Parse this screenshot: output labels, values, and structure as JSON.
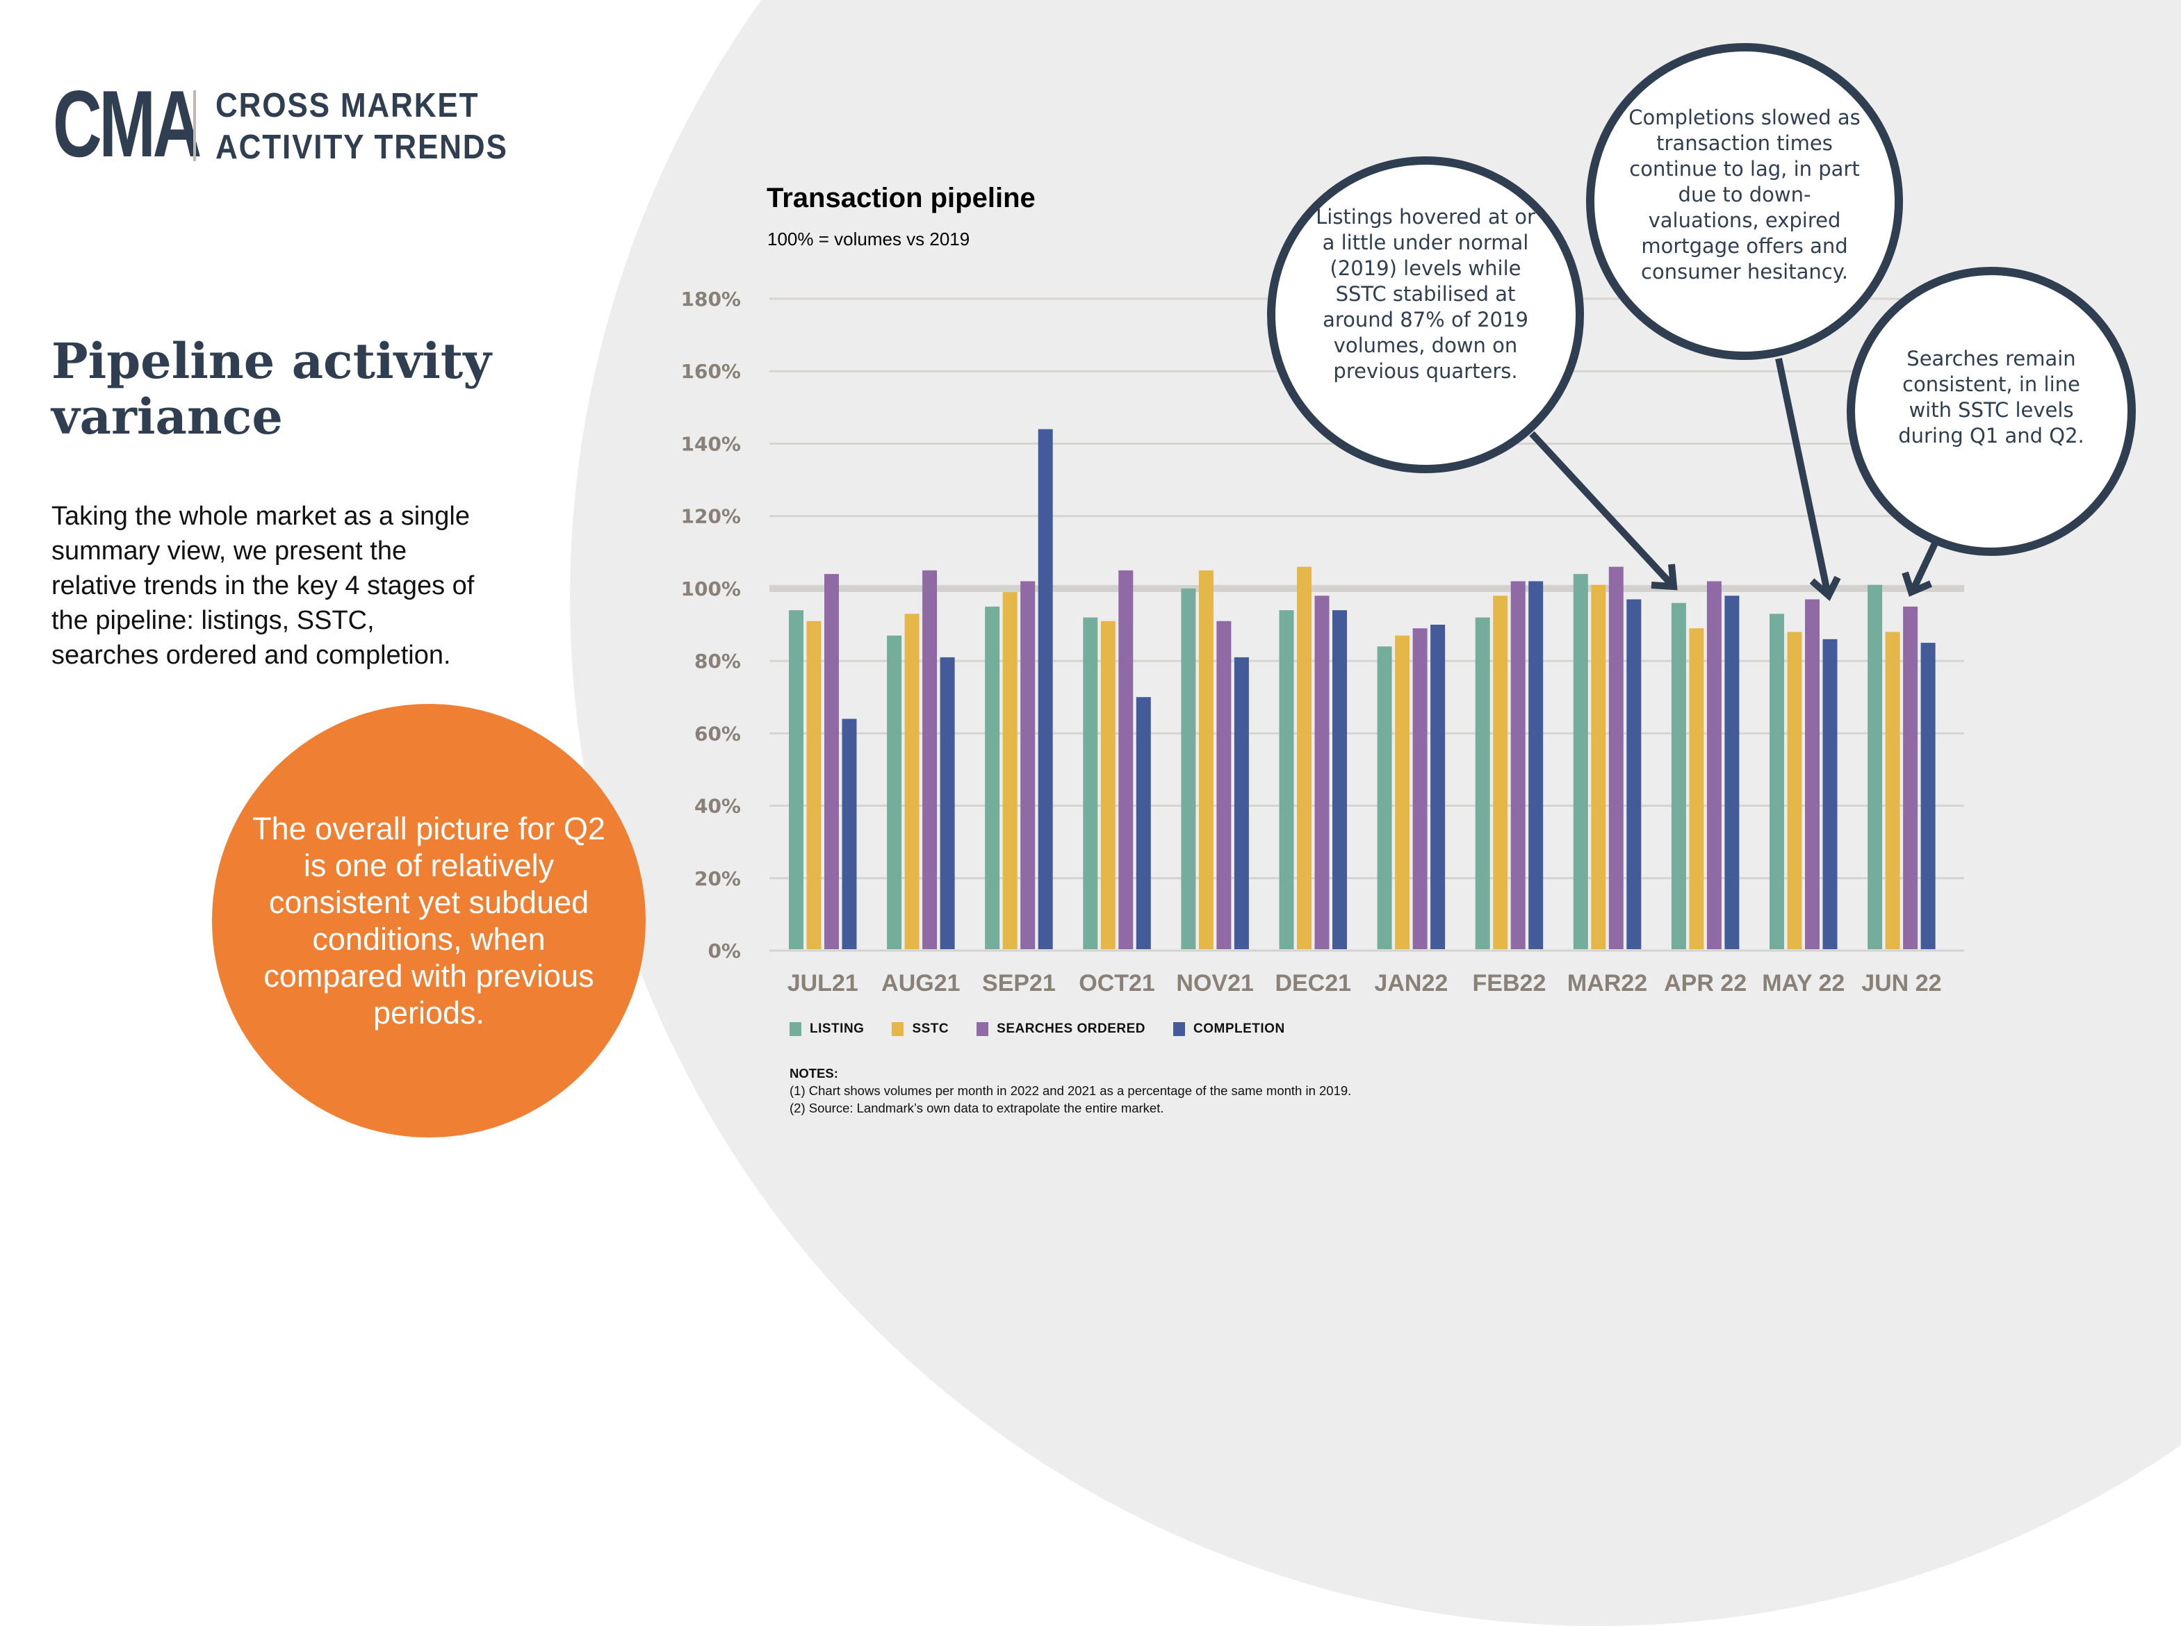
{
  "header": {
    "logo_mark": "CMA",
    "logo_line1": "CROSS MARKET",
    "logo_line2": "ACTIVITY TRENDS"
  },
  "page": {
    "title": "Pipeline activity variance",
    "intro": "Taking the whole market as a single summary view, we present the relative trends in the key 4 stages of the pipeline: listings, SSTC, searches ordered and completion.",
    "highlight": "The overall picture for Q2 is one of relatively consistent yet subdued conditions, when compared with previous periods."
  },
  "colors": {
    "brand_navy": "#2f3e50",
    "highlight_orange": "#ef8033",
    "listing": "#74ad9b",
    "sstc": "#e5b749",
    "searches": "#8f6aa5",
    "completion": "#435c99",
    "axis_text": "#898077"
  },
  "callouts": [
    "Listings hovered at or a little under normal (2019) levels while SSTC stabilised at around 87% of 2019 volumes, down on previous quarters.",
    "Completions slowed as transaction times continue to lag, in part due to down-valuations, expired mortgage offers and consumer hesitancy.",
    "Searches remain consistent, in line with SSTC levels during Q1 and Q2."
  ],
  "notes": {
    "title": "NOTES:",
    "lines": [
      "(1) Chart shows volumes per month in 2022 and 2021 as a percentage of the same month in 2019.",
      "(2) Source: Landmark’s own data to extrapolate the entire market."
    ]
  },
  "chart_data": {
    "type": "bar",
    "title": "Transaction pipeline",
    "subtitle": "100% = volumes vs 2019",
    "xlabel": "",
    "ylabel": "",
    "ylim": [
      0,
      180
    ],
    "yticks": [
      0,
      20,
      40,
      60,
      80,
      100,
      120,
      140,
      160,
      180
    ],
    "ytick_labels": [
      "0%",
      "20%",
      "40%",
      "60%",
      "80%",
      "100%",
      "120%",
      "140%",
      "160%",
      "180%"
    ],
    "reference_line": 100,
    "grid": true,
    "legend_position": "bottom-left",
    "categories": [
      "JUL21",
      "AUG21",
      "SEP21",
      "OCT21",
      "NOV21",
      "DEC21",
      "JAN22",
      "FEB22",
      "MAR22",
      "APR 22",
      "MAY 22",
      "JUN 22"
    ],
    "series": [
      {
        "name": "LISTING",
        "color": "#74ad9b",
        "values": [
          94,
          87,
          95,
          92,
          100,
          94,
          84,
          92,
          104,
          96,
          93,
          101
        ]
      },
      {
        "name": "SSTC",
        "color": "#e5b749",
        "values": [
          91,
          93,
          99,
          91,
          105,
          106,
          87,
          98,
          101,
          89,
          88,
          88
        ]
      },
      {
        "name": "SEARCHES ORDERED",
        "color": "#8f6aa5",
        "values": [
          104,
          105,
          102,
          105,
          91,
          98,
          89,
          102,
          106,
          102,
          97,
          95
        ]
      },
      {
        "name": "COMPLETION",
        "color": "#435c99",
        "values": [
          64,
          81,
          144,
          70,
          81,
          94,
          90,
          102,
          97,
          98,
          86,
          85
        ]
      }
    ]
  }
}
